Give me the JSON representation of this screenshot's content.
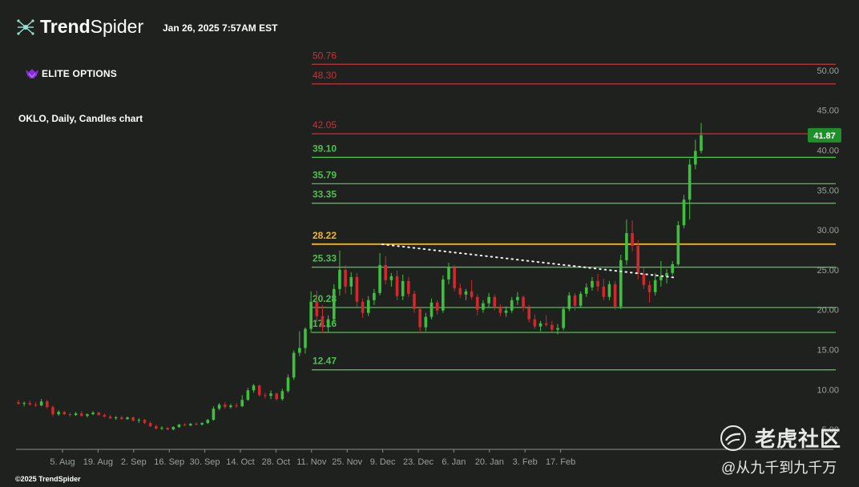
{
  "header": {
    "brand_bold": "Trend",
    "brand_light": "Spider",
    "timestamp": "Jan 26, 2025 7:57AM EST",
    "elite_logo_text": "ELITE OPTIONS",
    "copyright": "©2025 TrendSpider"
  },
  "watermark": {
    "site": "老虎社区",
    "handle": "@从九千到九千万"
  },
  "colors": {
    "background": "#1f211f",
    "up": "#3fbf3f",
    "down": "#d0282d",
    "resistance": "#c8323a",
    "support": "#4fbf4f",
    "pivot": "#f0b429",
    "price_badge": "#1f8f2a"
  },
  "chart_data": {
    "type": "candlestick",
    "title": "OKLO, Daily, Candles chart",
    "ylim": [
      2.5,
      54.0
    ],
    "y_ticks": [
      "5.00",
      "10.00",
      "15.00",
      "20.00",
      "25.00",
      "30.00",
      "35.00",
      "40.00",
      "45.00",
      "50.00"
    ],
    "x_ticks": [
      "5. Aug",
      "19. Aug",
      "2. Sep",
      "16. Sep",
      "30. Sep",
      "14. Oct",
      "28. Oct",
      "11. Nov",
      "25. Nov",
      "9. Dec",
      "23. Dec",
      "6. Jan",
      "20. Jan",
      "3. Feb",
      "17. Feb"
    ],
    "last_price": "41.87",
    "levels": [
      {
        "label": "50.76",
        "value": 50.76,
        "kind": "resistance"
      },
      {
        "label": "48.30",
        "value": 48.3,
        "kind": "resistance"
      },
      {
        "label": "42.05",
        "value": 42.05,
        "kind": "resistance"
      },
      {
        "label": "39.10",
        "value": 39.1,
        "kind": "support"
      },
      {
        "label": "35.79",
        "value": 35.79,
        "kind": "support"
      },
      {
        "label": "33.35",
        "value": 33.35,
        "kind": "support"
      },
      {
        "label": "28.22",
        "value": 28.22,
        "kind": "pivot"
      },
      {
        "label": "25.33",
        "value": 25.33,
        "kind": "support"
      },
      {
        "label": "20.28",
        "value": 20.28,
        "kind": "support"
      },
      {
        "label": "17.16",
        "value": 17.16,
        "kind": "support"
      },
      {
        "label": "12.47",
        "value": 12.47,
        "kind": "support"
      }
    ],
    "trendline": [
      [
        0,
        28.2
      ],
      [
        1,
        24.0
      ]
    ],
    "candles": [
      [
        8.4,
        8.7,
        8.1,
        8.2
      ],
      [
        8.2,
        8.5,
        7.9,
        8.3
      ],
      [
        8.3,
        8.6,
        8.0,
        8.1
      ],
      [
        8.1,
        8.4,
        7.8,
        8.0
      ],
      [
        8.0,
        8.8,
        7.9,
        8.5
      ],
      [
        8.5,
        8.7,
        7.6,
        7.8
      ],
      [
        7.8,
        8.0,
        6.6,
        6.9
      ],
      [
        6.9,
        7.4,
        6.7,
        7.2
      ],
      [
        7.2,
        7.3,
        6.8,
        6.9
      ],
      [
        6.9,
        7.1,
        6.6,
        6.8
      ],
      [
        6.8,
        7.2,
        6.7,
        7.0
      ],
      [
        7.0,
        7.3,
        6.6,
        6.7
      ],
      [
        6.7,
        7.0,
        6.5,
        6.9
      ],
      [
        6.9,
        7.3,
        6.8,
        7.1
      ],
      [
        7.1,
        7.2,
        6.7,
        6.8
      ],
      [
        6.8,
        7.0,
        6.5,
        6.6
      ],
      [
        6.6,
        6.8,
        6.3,
        6.4
      ],
      [
        6.4,
        6.7,
        6.2,
        6.5
      ],
      [
        6.5,
        6.7,
        6.2,
        6.3
      ],
      [
        6.3,
        6.6,
        6.2,
        6.5
      ],
      [
        6.5,
        6.6,
        6.0,
        6.1
      ],
      [
        6.1,
        6.4,
        5.8,
        6.2
      ],
      [
        6.2,
        6.3,
        5.7,
        5.8
      ],
      [
        5.8,
        6.0,
        5.3,
        5.4
      ],
      [
        5.4,
        5.6,
        5.0,
        5.1
      ],
      [
        5.1,
        5.4,
        4.9,
        5.2
      ],
      [
        5.2,
        5.3,
        4.9,
        5.0
      ],
      [
        5.0,
        5.4,
        4.9,
        5.3
      ],
      [
        5.3,
        5.7,
        5.2,
        5.6
      ],
      [
        5.6,
        5.8,
        5.4,
        5.5
      ],
      [
        5.5,
        5.8,
        5.4,
        5.7
      ],
      [
        5.7,
        5.9,
        5.5,
        5.6
      ],
      [
        5.6,
        5.9,
        5.5,
        5.8
      ],
      [
        5.8,
        6.3,
        5.7,
        6.2
      ],
      [
        6.2,
        7.9,
        6.1,
        7.6
      ],
      [
        7.6,
        8.3,
        7.4,
        8.1
      ],
      [
        8.1,
        8.4,
        7.6,
        7.8
      ],
      [
        7.8,
        8.2,
        7.6,
        8.0
      ],
      [
        8.0,
        8.3,
        7.7,
        7.9
      ],
      [
        7.9,
        9.3,
        7.8,
        8.7
      ],
      [
        8.7,
        10.2,
        8.6,
        9.9
      ],
      [
        9.9,
        10.7,
        9.6,
        10.5
      ],
      [
        10.5,
        10.6,
        9.1,
        9.3
      ],
      [
        9.3,
        9.6,
        8.9,
        9.2
      ],
      [
        9.2,
        9.9,
        8.8,
        9.5
      ],
      [
        9.5,
        9.6,
        8.6,
        8.8
      ],
      [
        8.8,
        10.1,
        8.6,
        9.8
      ],
      [
        9.8,
        11.9,
        9.6,
        11.5
      ],
      [
        11.5,
        14.9,
        11.2,
        14.6
      ],
      [
        14.6,
        17.3,
        14.2,
        15.2
      ],
      [
        15.2,
        17.8,
        14.5,
        17.6
      ],
      [
        17.6,
        22.3,
        17.1,
        21.0
      ],
      [
        21.0,
        22.4,
        18.5,
        19.2
      ],
      [
        19.2,
        20.6,
        17.1,
        17.8
      ],
      [
        17.8,
        19.3,
        17.2,
        18.8
      ],
      [
        18.8,
        23.2,
        18.4,
        22.6
      ],
      [
        22.6,
        27.4,
        21.8,
        25.0
      ],
      [
        25.0,
        25.6,
        22.0,
        22.9
      ],
      [
        22.9,
        24.7,
        21.9,
        24.1
      ],
      [
        24.1,
        24.6,
        20.3,
        21.0
      ],
      [
        21.0,
        21.4,
        19.0,
        19.6
      ],
      [
        19.6,
        21.7,
        19.2,
        21.2
      ],
      [
        21.2,
        22.6,
        20.6,
        22.1
      ],
      [
        22.1,
        27.1,
        21.8,
        25.6
      ],
      [
        25.6,
        26.7,
        23.2,
        23.7
      ],
      [
        23.7,
        24.6,
        22.9,
        24.2
      ],
      [
        24.2,
        24.9,
        21.2,
        21.7
      ],
      [
        21.7,
        24.4,
        21.2,
        23.6
      ],
      [
        23.6,
        24.1,
        21.6,
        22.0
      ],
      [
        22.0,
        22.4,
        19.6,
        20.1
      ],
      [
        20.1,
        20.4,
        17.1,
        17.8
      ],
      [
        17.8,
        19.6,
        17.3,
        19.1
      ],
      [
        19.1,
        21.4,
        18.8,
        20.9
      ],
      [
        20.9,
        21.2,
        19.4,
        19.9
      ],
      [
        19.9,
        24.3,
        19.6,
        23.8
      ],
      [
        23.8,
        25.9,
        23.2,
        25.3
      ],
      [
        25.3,
        25.6,
        22.3,
        22.7
      ],
      [
        22.7,
        23.3,
        21.5,
        21.9
      ],
      [
        21.9,
        22.6,
        21.2,
        22.3
      ],
      [
        22.3,
        23.7,
        21.3,
        21.6
      ],
      [
        21.6,
        21.9,
        19.3,
        20.0
      ],
      [
        20.0,
        21.2,
        19.6,
        20.8
      ],
      [
        20.8,
        22.1,
        20.2,
        21.6
      ],
      [
        21.6,
        21.9,
        19.9,
        20.3
      ],
      [
        20.3,
        20.7,
        19.2,
        19.6
      ],
      [
        19.6,
        20.4,
        19.1,
        19.9
      ],
      [
        19.9,
        21.6,
        19.6,
        21.2
      ],
      [
        21.2,
        22.2,
        20.6,
        21.6
      ],
      [
        21.6,
        21.8,
        19.8,
        20.2
      ],
      [
        20.2,
        20.6,
        18.4,
        18.8
      ],
      [
        18.8,
        19.4,
        17.6,
        17.9
      ],
      [
        17.9,
        18.6,
        17.3,
        18.3
      ],
      [
        18.3,
        19.3,
        17.9,
        18.1
      ],
      [
        18.1,
        18.6,
        17.2,
        17.5
      ],
      [
        17.5,
        18.2,
        16.9,
        17.7
      ],
      [
        17.7,
        20.4,
        17.4,
        20.1
      ],
      [
        20.1,
        22.2,
        19.8,
        21.8
      ],
      [
        21.8,
        22.1,
        19.9,
        20.5
      ],
      [
        20.5,
        22.3,
        20.2,
        22.0
      ],
      [
        22.0,
        23.3,
        21.6,
        22.8
      ],
      [
        22.8,
        24.1,
        22.4,
        23.6
      ],
      [
        23.6,
        24.5,
        22.3,
        22.9
      ],
      [
        22.9,
        23.9,
        21.2,
        21.6
      ],
      [
        21.6,
        23.6,
        21.2,
        23.2
      ],
      [
        23.2,
        23.6,
        20.0,
        20.4
      ],
      [
        20.4,
        26.9,
        20.1,
        26.2
      ],
      [
        26.2,
        31.3,
        25.6,
        29.6
      ],
      [
        29.6,
        31.2,
        27.3,
        28.0
      ],
      [
        28.0,
        28.7,
        23.8,
        24.5
      ],
      [
        24.5,
        25.3,
        22.6,
        23.1
      ],
      [
        23.1,
        23.6,
        20.9,
        22.2
      ],
      [
        22.2,
        24.6,
        21.8,
        23.7
      ],
      [
        23.7,
        26.1,
        22.9,
        24.2
      ],
      [
        24.2,
        25.1,
        23.3,
        24.6
      ],
      [
        24.6,
        26.1,
        24.3,
        25.7
      ],
      [
        25.7,
        31.1,
        25.5,
        30.6
      ],
      [
        30.6,
        34.4,
        30.2,
        33.8
      ],
      [
        33.8,
        38.9,
        31.3,
        38.2
      ],
      [
        38.2,
        41.3,
        37.6,
        39.9
      ],
      [
        39.9,
        43.4,
        39.6,
        41.87
      ]
    ]
  }
}
